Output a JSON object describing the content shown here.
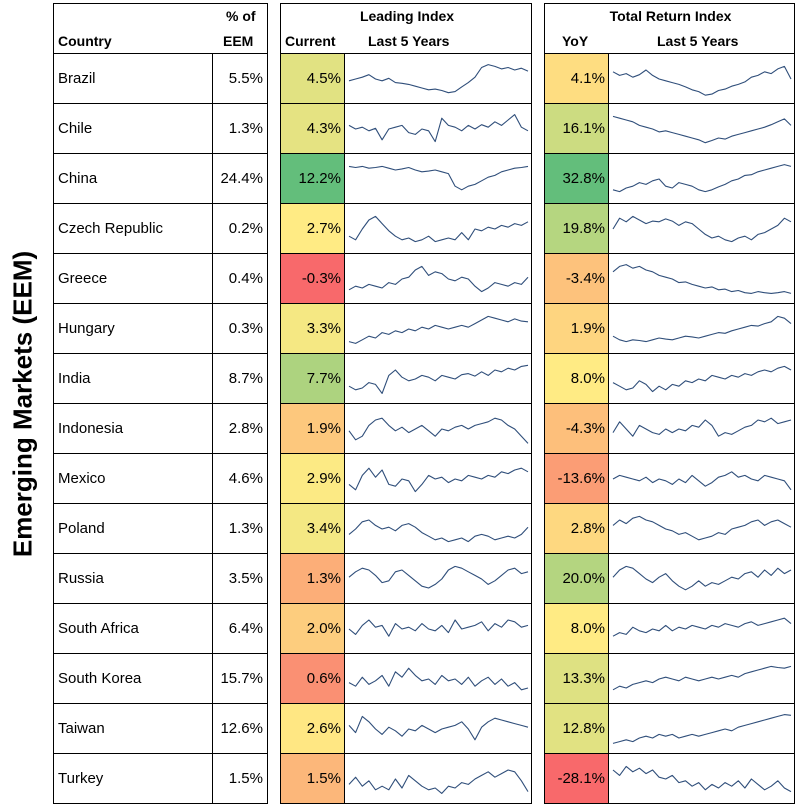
{
  "side_title": "Emerging Markets (EEM)",
  "headers": {
    "country": "Country",
    "weight_line1": "% of",
    "weight_line2": "EEM",
    "leading_index": "Leading Index",
    "current": "Current",
    "last5_a": "Last 5 Years",
    "total_return_index": "Total Return Index",
    "yoy": "YoY",
    "last5_b": "Last 5 Years"
  },
  "colors": {
    "line": "#2F4E7A",
    "scale_low": "#F8696B",
    "scale_mid": "#FFEB84",
    "scale_high": "#63BE7B"
  },
  "chart_data": [
    {
      "type": "table",
      "title": "Emerging Markets (EEM)",
      "columns": [
        "Country",
        "% of EEM",
        "Leading Index Current",
        "Leading Index Last 5 Years",
        "Total Return Index YoY",
        "Total Return Index Last 5 Years"
      ],
      "rows": [
        {
          "country": "Brazil",
          "weight": "5.5%",
          "leading": "4.5%",
          "leading_value": 4.5,
          "yoy": "4.1%",
          "yoy_value": 4.1,
          "lead_trend": [
            0.45,
            0.5,
            0.55,
            0.62,
            0.5,
            0.45,
            0.52,
            0.4,
            0.38,
            0.35,
            0.3,
            0.25,
            0.2,
            0.22,
            0.18,
            0.12,
            0.15,
            0.28,
            0.4,
            0.55,
            0.82,
            0.9,
            0.85,
            0.78,
            0.82,
            0.75,
            0.8,
            0.72
          ],
          "tr_trend": [
            0.7,
            0.6,
            0.65,
            0.55,
            0.62,
            0.75,
            0.6,
            0.5,
            0.45,
            0.4,
            0.35,
            0.28,
            0.2,
            0.15,
            0.05,
            0.08,
            0.18,
            0.22,
            0.3,
            0.35,
            0.42,
            0.55,
            0.6,
            0.7,
            0.65,
            0.78,
            0.85,
            0.5
          ]
        },
        {
          "country": "Chile",
          "weight": "1.3%",
          "leading": "4.3%",
          "leading_value": 4.3,
          "yoy": "16.1%",
          "yoy_value": 16.1,
          "lead_trend": [
            0.6,
            0.5,
            0.55,
            0.45,
            0.52,
            0.2,
            0.5,
            0.55,
            0.6,
            0.4,
            0.35,
            0.5,
            0.45,
            0.15,
            0.8,
            0.6,
            0.55,
            0.45,
            0.6,
            0.5,
            0.62,
            0.55,
            0.7,
            0.6,
            0.75,
            0.9,
            0.55,
            0.45
          ],
          "tr_trend": [
            0.85,
            0.8,
            0.75,
            0.7,
            0.6,
            0.55,
            0.5,
            0.42,
            0.45,
            0.4,
            0.35,
            0.3,
            0.25,
            0.2,
            0.12,
            0.18,
            0.25,
            0.22,
            0.3,
            0.35,
            0.4,
            0.45,
            0.5,
            0.55,
            0.62,
            0.7,
            0.78,
            0.6
          ]
        },
        {
          "country": "China",
          "weight": "24.4%",
          "leading": "12.2%",
          "leading_value": 12.2,
          "yoy": "32.8%",
          "yoy_value": 32.8,
          "lead_trend": [
            0.85,
            0.82,
            0.85,
            0.8,
            0.82,
            0.85,
            0.8,
            0.75,
            0.78,
            0.82,
            0.75,
            0.7,
            0.72,
            0.75,
            0.7,
            0.65,
            0.3,
            0.2,
            0.3,
            0.35,
            0.45,
            0.55,
            0.6,
            0.7,
            0.75,
            0.8,
            0.82,
            0.85
          ],
          "tr_trend": [
            0.2,
            0.15,
            0.25,
            0.3,
            0.4,
            0.35,
            0.45,
            0.5,
            0.3,
            0.25,
            0.4,
            0.35,
            0.3,
            0.2,
            0.15,
            0.2,
            0.28,
            0.35,
            0.45,
            0.5,
            0.6,
            0.62,
            0.7,
            0.75,
            0.8,
            0.85,
            0.9,
            0.85
          ]
        },
        {
          "country": "Czech Republic",
          "weight": "0.2%",
          "leading": "2.7%",
          "leading_value": 2.7,
          "yoy": "19.8%",
          "yoy_value": 19.8,
          "lead_trend": [
            0.3,
            0.2,
            0.5,
            0.75,
            0.85,
            0.65,
            0.45,
            0.3,
            0.2,
            0.25,
            0.15,
            0.2,
            0.3,
            0.15,
            0.2,
            0.25,
            0.2,
            0.4,
            0.2,
            0.5,
            0.45,
            0.55,
            0.5,
            0.6,
            0.55,
            0.65,
            0.6,
            0.7
          ],
          "tr_trend": [
            0.5,
            0.8,
            0.7,
            0.85,
            0.75,
            0.65,
            0.72,
            0.7,
            0.78,
            0.72,
            0.6,
            0.7,
            0.65,
            0.5,
            0.35,
            0.25,
            0.3,
            0.2,
            0.15,
            0.25,
            0.3,
            0.2,
            0.35,
            0.4,
            0.5,
            0.6,
            0.8,
            0.7
          ]
        },
        {
          "country": "Greece",
          "weight": "0.4%",
          "leading": "-0.3%",
          "leading_value": -0.3,
          "yoy": "-3.4%",
          "yoy_value": -3.4,
          "lead_trend": [
            0.2,
            0.3,
            0.25,
            0.35,
            0.3,
            0.25,
            0.4,
            0.35,
            0.5,
            0.55,
            0.75,
            0.85,
            0.6,
            0.7,
            0.65,
            0.5,
            0.45,
            0.55,
            0.5,
            0.3,
            0.15,
            0.25,
            0.4,
            0.35,
            0.3,
            0.4,
            0.35,
            0.55
          ],
          "tr_trend": [
            0.7,
            0.85,
            0.9,
            0.8,
            0.85,
            0.75,
            0.7,
            0.6,
            0.55,
            0.5,
            0.4,
            0.42,
            0.35,
            0.3,
            0.25,
            0.28,
            0.2,
            0.22,
            0.15,
            0.18,
            0.12,
            0.1,
            0.15,
            0.12,
            0.1,
            0.12,
            0.15,
            0.1
          ]
        },
        {
          "country": "Hungary",
          "weight": "0.3%",
          "leading": "3.3%",
          "leading_value": 3.3,
          "yoy": "1.9%",
          "yoy_value": 1.9,
          "lead_trend": [
            0.15,
            0.1,
            0.2,
            0.3,
            0.25,
            0.4,
            0.35,
            0.45,
            0.4,
            0.5,
            0.45,
            0.55,
            0.5,
            0.6,
            0.55,
            0.5,
            0.55,
            0.6,
            0.55,
            0.65,
            0.75,
            0.85,
            0.8,
            0.75,
            0.7,
            0.78,
            0.72,
            0.7
          ],
          "tr_trend": [
            0.3,
            0.2,
            0.15,
            0.2,
            0.18,
            0.15,
            0.2,
            0.25,
            0.22,
            0.2,
            0.25,
            0.3,
            0.28,
            0.25,
            0.3,
            0.35,
            0.4,
            0.38,
            0.45,
            0.5,
            0.55,
            0.6,
            0.58,
            0.65,
            0.7,
            0.85,
            0.8,
            0.65
          ]
        },
        {
          "country": "India",
          "weight": "8.7%",
          "leading": "7.7%",
          "leading_value": 7.7,
          "yoy": "8.0%",
          "yoy_value": 8.0,
          "lead_trend": [
            0.3,
            0.2,
            0.25,
            0.4,
            0.35,
            0.1,
            0.6,
            0.75,
            0.55,
            0.45,
            0.5,
            0.6,
            0.55,
            0.45,
            0.6,
            0.55,
            0.5,
            0.62,
            0.65,
            0.58,
            0.7,
            0.6,
            0.75,
            0.7,
            0.8,
            0.75,
            0.85,
            0.88
          ],
          "tr_trend": [
            0.4,
            0.3,
            0.2,
            0.25,
            0.45,
            0.35,
            0.15,
            0.3,
            0.2,
            0.35,
            0.3,
            0.45,
            0.4,
            0.5,
            0.45,
            0.6,
            0.55,
            0.5,
            0.6,
            0.55,
            0.65,
            0.6,
            0.7,
            0.75,
            0.7,
            0.8,
            0.85,
            0.75
          ]
        },
        {
          "country": "Indonesia",
          "weight": "2.8%",
          "leading": "1.9%",
          "leading_value": 1.9,
          "yoy": "-4.3%",
          "yoy_value": -4.3,
          "lead_trend": [
            0.45,
            0.2,
            0.3,
            0.6,
            0.75,
            0.8,
            0.6,
            0.45,
            0.55,
            0.4,
            0.5,
            0.6,
            0.45,
            0.3,
            0.5,
            0.45,
            0.55,
            0.6,
            0.5,
            0.6,
            0.65,
            0.7,
            0.8,
            0.75,
            0.6,
            0.5,
            0.3,
            0.1
          ],
          "tr_trend": [
            0.4,
            0.7,
            0.5,
            0.3,
            0.6,
            0.5,
            0.4,
            0.35,
            0.5,
            0.4,
            0.5,
            0.45,
            0.6,
            0.55,
            0.75,
            0.6,
            0.3,
            0.4,
            0.35,
            0.45,
            0.55,
            0.6,
            0.75,
            0.7,
            0.8,
            0.65,
            0.7,
            0.75
          ]
        },
        {
          "country": "Mexico",
          "weight": "4.6%",
          "leading": "2.9%",
          "leading_value": 2.9,
          "yoy": "-13.6%",
          "yoy_value": -13.6,
          "lead_trend": [
            0.35,
            0.2,
            0.6,
            0.8,
            0.55,
            0.75,
            0.35,
            0.3,
            0.5,
            0.45,
            0.15,
            0.35,
            0.6,
            0.5,
            0.55,
            0.4,
            0.5,
            0.45,
            0.6,
            0.55,
            0.5,
            0.6,
            0.55,
            0.7,
            0.65,
            0.75,
            0.8,
            0.7
          ],
          "tr_trend": [
            0.5,
            0.6,
            0.55,
            0.5,
            0.45,
            0.55,
            0.4,
            0.5,
            0.45,
            0.35,
            0.5,
            0.4,
            0.6,
            0.45,
            0.3,
            0.4,
            0.55,
            0.6,
            0.7,
            0.55,
            0.6,
            0.5,
            0.45,
            0.6,
            0.55,
            0.5,
            0.45,
            0.2
          ]
        },
        {
          "country": "Poland",
          "weight": "1.3%",
          "leading": "3.4%",
          "leading_value": 3.4,
          "yoy": "2.8%",
          "yoy_value": 2.8,
          "lead_trend": [
            0.35,
            0.5,
            0.7,
            0.75,
            0.6,
            0.5,
            0.55,
            0.45,
            0.6,
            0.65,
            0.55,
            0.4,
            0.3,
            0.2,
            0.25,
            0.15,
            0.2,
            0.25,
            0.15,
            0.3,
            0.35,
            0.3,
            0.2,
            0.25,
            0.3,
            0.25,
            0.35,
            0.55
          ],
          "tr_trend": [
            0.6,
            0.75,
            0.65,
            0.8,
            0.85,
            0.75,
            0.7,
            0.6,
            0.5,
            0.45,
            0.35,
            0.4,
            0.3,
            0.2,
            0.25,
            0.3,
            0.4,
            0.35,
            0.5,
            0.55,
            0.6,
            0.7,
            0.75,
            0.6,
            0.7,
            0.75,
            0.65,
            0.55
          ]
        },
        {
          "country": "Russia",
          "weight": "3.5%",
          "leading": "1.3%",
          "leading_value": 1.3,
          "yoy": "20.0%",
          "yoy_value": 20.0,
          "lead_trend": [
            0.55,
            0.7,
            0.8,
            0.75,
            0.6,
            0.4,
            0.45,
            0.7,
            0.75,
            0.6,
            0.45,
            0.3,
            0.25,
            0.35,
            0.5,
            0.75,
            0.85,
            0.8,
            0.7,
            0.6,
            0.5,
            0.35,
            0.45,
            0.6,
            0.75,
            0.8,
            0.65,
            0.7
          ],
          "tr_trend": [
            0.55,
            0.75,
            0.85,
            0.8,
            0.65,
            0.5,
            0.4,
            0.55,
            0.65,
            0.45,
            0.3,
            0.2,
            0.3,
            0.45,
            0.3,
            0.4,
            0.35,
            0.45,
            0.55,
            0.5,
            0.65,
            0.7,
            0.55,
            0.75,
            0.6,
            0.8,
            0.65,
            0.75
          ]
        },
        {
          "country": "South Africa",
          "weight": "6.4%",
          "leading": "2.0%",
          "leading_value": 2.0,
          "yoy": "8.0%",
          "yoy_value": 8.0,
          "lead_trend": [
            0.5,
            0.35,
            0.6,
            0.75,
            0.55,
            0.6,
            0.3,
            0.65,
            0.5,
            0.55,
            0.45,
            0.65,
            0.5,
            0.45,
            0.6,
            0.4,
            0.75,
            0.5,
            0.55,
            0.6,
            0.7,
            0.45,
            0.65,
            0.55,
            0.75,
            0.7,
            0.55,
            0.6
          ],
          "tr_trend": [
            0.3,
            0.4,
            0.35,
            0.55,
            0.45,
            0.4,
            0.5,
            0.45,
            0.6,
            0.45,
            0.55,
            0.5,
            0.6,
            0.55,
            0.5,
            0.6,
            0.55,
            0.65,
            0.6,
            0.55,
            0.65,
            0.7,
            0.6,
            0.65,
            0.7,
            0.75,
            0.8,
            0.65
          ]
        },
        {
          "country": "South Korea",
          "weight": "15.7%",
          "leading": "0.6%",
          "leading_value": 0.6,
          "yoy": "13.3%",
          "yoy_value": 13.3,
          "lead_trend": [
            0.4,
            0.3,
            0.55,
            0.35,
            0.45,
            0.6,
            0.3,
            0.7,
            0.55,
            0.8,
            0.6,
            0.45,
            0.5,
            0.35,
            0.6,
            0.45,
            0.5,
            0.35,
            0.55,
            0.3,
            0.45,
            0.55,
            0.35,
            0.5,
            0.3,
            0.4,
            0.2,
            0.25
          ],
          "tr_trend": [
            0.2,
            0.3,
            0.25,
            0.35,
            0.4,
            0.45,
            0.4,
            0.5,
            0.55,
            0.5,
            0.45,
            0.55,
            0.5,
            0.45,
            0.5,
            0.55,
            0.5,
            0.55,
            0.6,
            0.55,
            0.65,
            0.7,
            0.75,
            0.8,
            0.85,
            0.82,
            0.8,
            0.85
          ]
        },
        {
          "country": "Taiwan",
          "weight": "12.6%",
          "leading": "2.6%",
          "leading_value": 2.6,
          "yoy": "12.8%",
          "yoy_value": 12.8,
          "lead_trend": [
            0.6,
            0.4,
            0.85,
            0.7,
            0.5,
            0.35,
            0.55,
            0.45,
            0.3,
            0.5,
            0.45,
            0.6,
            0.5,
            0.4,
            0.5,
            0.55,
            0.6,
            0.7,
            0.5,
            0.2,
            0.55,
            0.7,
            0.8,
            0.75,
            0.7,
            0.65,
            0.6,
            0.55
          ],
          "tr_trend": [
            0.1,
            0.15,
            0.2,
            0.15,
            0.25,
            0.3,
            0.25,
            0.35,
            0.3,
            0.35,
            0.25,
            0.3,
            0.35,
            0.3,
            0.35,
            0.4,
            0.45,
            0.5,
            0.45,
            0.55,
            0.6,
            0.65,
            0.7,
            0.75,
            0.8,
            0.85,
            0.9,
            0.88
          ]
        },
        {
          "country": "Turkey",
          "weight": "1.5%",
          "leading": "1.5%",
          "leading_value": 1.5,
          "yoy": "-28.1%",
          "yoy_value": -28.1,
          "lead_trend": [
            0.35,
            0.55,
            0.3,
            0.45,
            0.2,
            0.3,
            0.2,
            0.5,
            0.25,
            0.6,
            0.45,
            0.3,
            0.2,
            0.25,
            0.1,
            0.3,
            0.25,
            0.4,
            0.35,
            0.5,
            0.6,
            0.7,
            0.55,
            0.65,
            0.75,
            0.7,
            0.45,
            0.15
          ],
          "tr_trend": [
            0.75,
            0.6,
            0.85,
            0.7,
            0.8,
            0.65,
            0.75,
            0.55,
            0.5,
            0.6,
            0.4,
            0.45,
            0.3,
            0.4,
            0.2,
            0.35,
            0.25,
            0.4,
            0.3,
            0.45,
            0.25,
            0.5,
            0.35,
            0.2,
            0.3,
            0.45,
            0.25,
            0.15
          ]
        }
      ]
    }
  ]
}
